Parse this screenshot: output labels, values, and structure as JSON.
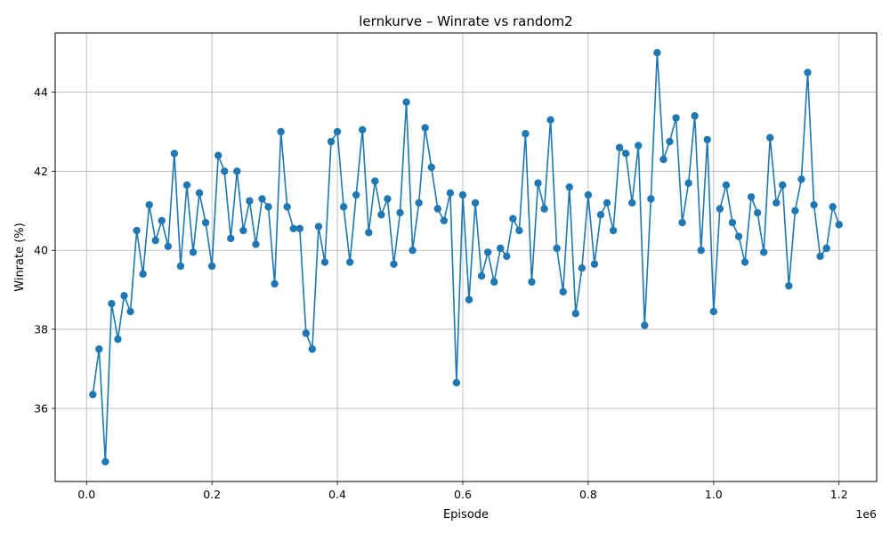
{
  "chart_data": {
    "type": "line",
    "title": "lernkurve – Winrate vs random2",
    "xlabel": "Episode",
    "ylabel": "Winrate (%)",
    "x_offset_label": "1e6",
    "xlim": [
      -50000,
      1260000
    ],
    "ylim": [
      34.15,
      45.5
    ],
    "x_ticks": [
      0,
      200000,
      400000,
      600000,
      800000,
      1000000,
      1200000
    ],
    "x_tick_labels": [
      "0.0",
      "0.2",
      "0.4",
      "0.6",
      "0.8",
      "1.0",
      "1.2"
    ],
    "y_ticks": [
      36,
      38,
      40,
      42,
      44
    ],
    "y_tick_labels": [
      "36",
      "38",
      "40",
      "42",
      "44"
    ],
    "grid": true,
    "legend": "none",
    "colors": {
      "line": "#1f77b4",
      "grid": "#b0b0b0",
      "axes": "#000000"
    },
    "series": [
      {
        "x": [
          10000,
          20000,
          30000,
          40000,
          50000,
          60000,
          70000,
          80000,
          90000,
          100000,
          110000,
          120000,
          130000,
          140000,
          150000,
          160000,
          170000,
          180000,
          190000,
          200000,
          210000,
          220000,
          230000,
          240000,
          250000,
          260000,
          270000,
          280000,
          290000,
          300000,
          310000,
          320000,
          330000,
          340000,
          350000,
          360000,
          370000,
          380000,
          390000,
          400000,
          410000,
          420000,
          430000,
          440000,
          450000,
          460000,
          470000,
          480000,
          490000,
          500000,
          510000,
          520000,
          530000,
          540000,
          550000,
          560000,
          570000,
          580000,
          590000,
          600000,
          610000,
          620000,
          630000,
          640000,
          650000,
          660000,
          670000,
          680000,
          690000,
          700000,
          710000,
          720000,
          730000,
          740000,
          750000,
          760000,
          770000,
          780000,
          790000,
          800000,
          810000,
          820000,
          830000,
          840000,
          850000,
          860000,
          870000,
          880000,
          890000,
          900000,
          910000,
          920000,
          930000,
          940000,
          950000,
          960000,
          970000,
          980000,
          990000,
          1000000,
          1010000,
          1020000,
          1030000,
          1040000,
          1050000,
          1060000,
          1070000,
          1080000,
          1090000,
          1100000,
          1110000,
          1120000,
          1130000,
          1140000,
          1150000,
          1160000,
          1170000,
          1180000,
          1190000,
          1200000
        ],
        "y": [
          36.35,
          37.5,
          34.65,
          38.65,
          37.75,
          38.85,
          38.45,
          40.5,
          39.4,
          41.15,
          40.25,
          40.75,
          40.1,
          42.45,
          39.6,
          41.65,
          39.95,
          41.45,
          40.7,
          39.6,
          42.4,
          42.0,
          40.3,
          42.0,
          40.5,
          41.25,
          40.15,
          41.3,
          41.1,
          39.15,
          43.0,
          41.1,
          40.55,
          40.55,
          37.9,
          37.5,
          40.6,
          39.7,
          42.75,
          43.0,
          41.1,
          39.7,
          41.4,
          43.05,
          40.45,
          41.75,
          40.9,
          41.3,
          39.65,
          40.95,
          43.75,
          40.0,
          41.2,
          43.1,
          42.1,
          41.05,
          40.75,
          41.45,
          36.65,
          41.4,
          38.75,
          41.2,
          39.35,
          39.95,
          39.2,
          40.05,
          39.85,
          40.8,
          40.5,
          42.95,
          39.2,
          41.7,
          41.05,
          43.3,
          40.05,
          38.95,
          41.6,
          38.4,
          39.55,
          41.4,
          39.65,
          40.9,
          41.2,
          40.5,
          42.6,
          42.45,
          41.2,
          42.65,
          38.1,
          41.3,
          45.0,
          42.3,
          42.75,
          43.35,
          40.7,
          41.7,
          43.4,
          40.0,
          42.8,
          38.45,
          41.05,
          41.65,
          40.7,
          40.35,
          39.7,
          41.35,
          40.95,
          39.95,
          42.85,
          41.2,
          41.65,
          39.1,
          41.0,
          41.8,
          44.5,
          41.15,
          39.85,
          40.05,
          41.1,
          40.65
        ]
      }
    ]
  }
}
